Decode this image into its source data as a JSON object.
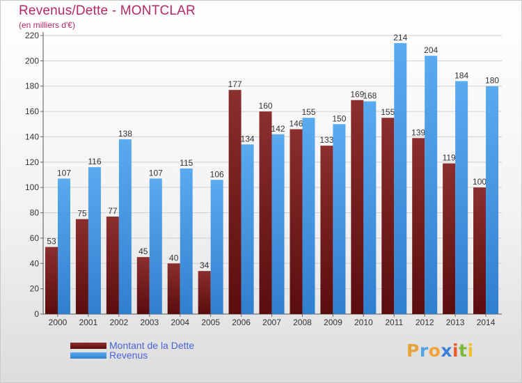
{
  "header": {
    "title": "Revenus/Dette - MONTCLAR",
    "subtitle": "(en milliers d'€)"
  },
  "colors": {
    "title": "#b3285f",
    "debt_top": "#8b2e2e",
    "debt_bottom": "#5a0d0d",
    "revenue_top": "#5aaaf0",
    "revenue_bottom": "#2f7fcf",
    "legend_text": "#4a63d8",
    "axis_text": "#333333"
  },
  "logo": {
    "letters": [
      "P",
      "r",
      "o",
      "x",
      "i",
      "t",
      "i"
    ],
    "colors": [
      "#e8a23a",
      "#4fa3e0",
      "#f0a33a",
      "#3b7fd6",
      "#e85b2a",
      "#7cb83a",
      "#f0c030"
    ]
  },
  "chart_data": {
    "type": "bar",
    "categories": [
      "2000",
      "2001",
      "2002",
      "2003",
      "2004",
      "2005",
      "2006",
      "2007",
      "2008",
      "2009",
      "2010",
      "2011",
      "2012",
      "2013",
      "2014"
    ],
    "series": [
      {
        "name": "Montant de la Dette",
        "values": [
          53,
          75,
          77,
          45,
          40,
          34,
          177,
          160,
          146,
          133,
          169,
          155,
          139,
          119,
          100
        ]
      },
      {
        "name": "Revenus",
        "values": [
          107,
          116,
          138,
          107,
          115,
          106,
          134,
          142,
          155,
          150,
          168,
          214,
          204,
          184,
          180
        ]
      }
    ],
    "yticks": [
      0,
      20,
      40,
      60,
      80,
      100,
      120,
      140,
      160,
      180,
      200,
      220
    ],
    "ylim": [
      0,
      220
    ],
    "grid": true,
    "legend": "bottom-left"
  }
}
